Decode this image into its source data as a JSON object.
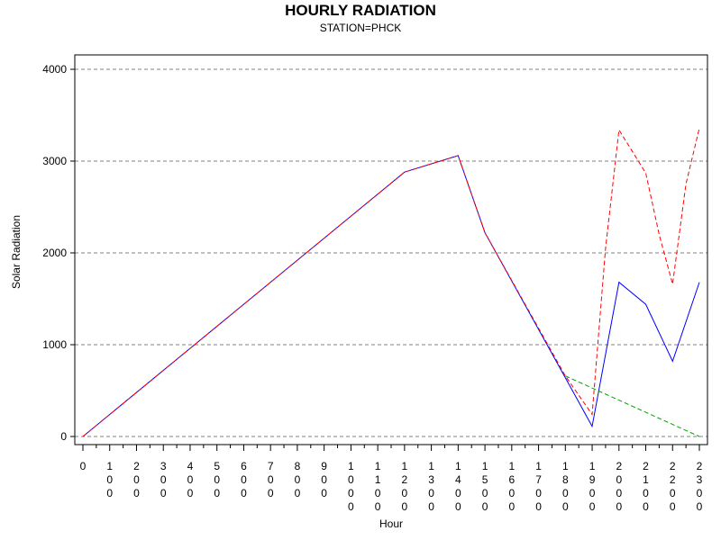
{
  "chart_data": {
    "type": "line",
    "title": "HOURLY RADIATION",
    "subtitle": "STATION=PHCK",
    "xlabel": "Hour",
    "ylabel": "Solar Radiation",
    "xlim": [
      0,
      2300
    ],
    "ylim": [
      0,
      4000
    ],
    "y_ticks": [
      0,
      1000,
      2000,
      3000,
      4000
    ],
    "x_ticks": [
      0,
      100,
      200,
      300,
      400,
      500,
      600,
      700,
      800,
      900,
      1000,
      1100,
      1200,
      1300,
      1400,
      1500,
      1600,
      1700,
      1800,
      1900,
      2000,
      2100,
      2200,
      2300
    ],
    "x_tick_labels": [
      "0",
      "100",
      "200",
      "300",
      "400",
      "500",
      "600",
      "700",
      "800",
      "900",
      "1000",
      "1100",
      "1200",
      "1300",
      "1400",
      "1500",
      "1600",
      "1700",
      "1800",
      "1900",
      "2000",
      "2100",
      "2200",
      "2300"
    ],
    "grid": {
      "horizontal": true,
      "style": "dashed"
    },
    "legend": "none",
    "series": [
      {
        "color": "#0000ff",
        "style": "solid",
        "x": [
          0,
          1200,
          1400,
          1500,
          1800,
          1900,
          2000,
          2100,
          2200,
          2300
        ],
        "y": [
          0,
          2880,
          3060,
          2220,
          640,
          110,
          1680,
          1440,
          820,
          1680
        ]
      },
      {
        "color": "#ff0000",
        "style": "dashed",
        "x": [
          0,
          1200,
          1400,
          1500,
          1800,
          1900,
          1950,
          2000,
          2100,
          2150,
          2200,
          2250,
          2300
        ],
        "y": [
          0,
          2880,
          3060,
          2220,
          660,
          240,
          2050,
          3340,
          2870,
          2200,
          1660,
          2750,
          3360
        ]
      },
      {
        "color": "#00a000",
        "style": "dashed",
        "x": [
          1800,
          2300
        ],
        "y": [
          660,
          0
        ]
      }
    ]
  }
}
